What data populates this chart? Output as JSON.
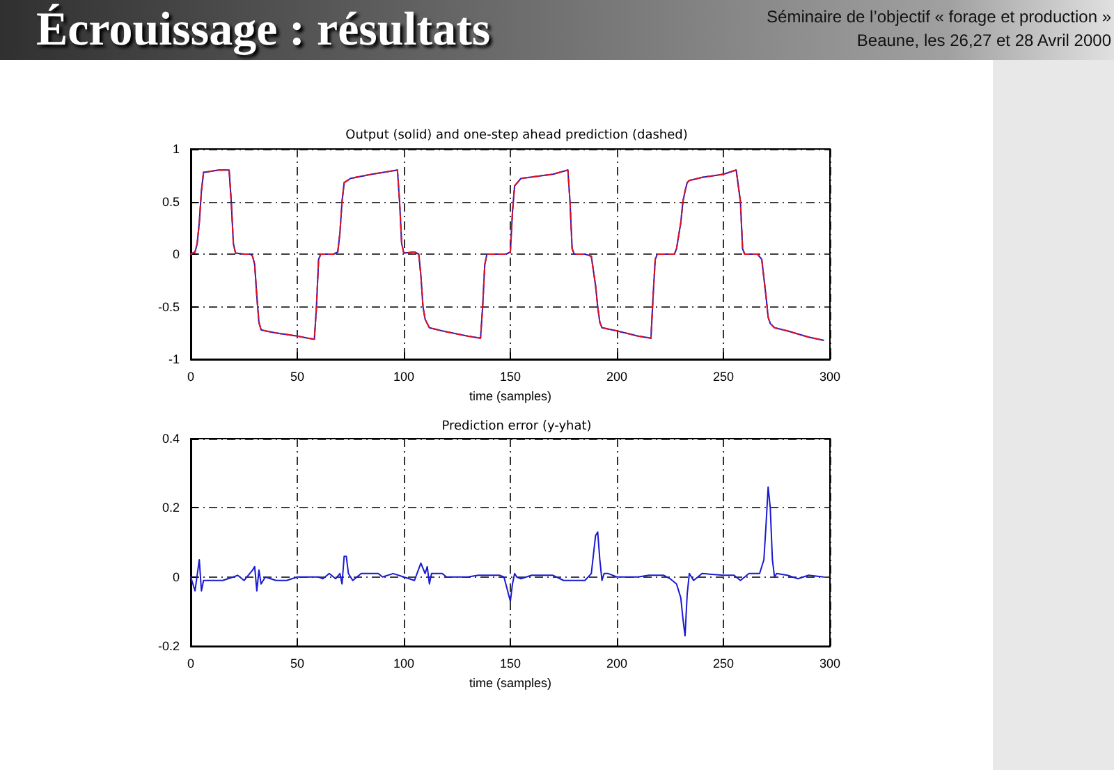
{
  "chart_data": [
    {
      "type": "line",
      "title": "Output (solid) and one-step ahead prediction (dashed)",
      "xlabel": "time (samples)",
      "annotations": [
        "Écrouissage : résultats",
        "Séminaire de l’objectif « forage et production »",
        "Beaune, les 26,27 et 28 Avril 2000"
      ],
      "x": [
        0,
        2,
        3,
        4,
        5,
        6,
        7,
        10,
        13,
        18,
        19,
        20,
        21,
        25,
        28,
        29,
        30,
        31,
        32,
        33,
        35,
        40,
        50,
        55,
        58,
        59,
        60,
        61,
        67,
        69,
        70,
        71,
        72,
        75,
        85,
        97,
        98,
        99,
        100,
        105,
        107,
        108,
        109,
        110,
        112,
        118,
        130,
        136,
        137,
        138,
        139,
        148,
        150,
        151,
        152,
        155,
        170,
        177,
        178,
        179,
        180,
        185,
        188,
        190,
        191,
        192,
        193,
        200,
        210,
        216,
        217,
        218,
        219,
        227,
        228,
        230,
        231,
        232,
        233,
        234,
        240,
        250,
        256,
        258,
        259,
        260,
        266,
        268,
        270,
        271,
        272,
        273,
        274,
        280,
        290,
        297
      ],
      "series": [
        {
          "color": "#1a1ad0",
          "line_style": "solid",
          "values": [
            0,
            0.02,
            0.1,
            0.3,
            0.6,
            0.78,
            0.78,
            0.79,
            0.8,
            0.8,
            0.5,
            0.1,
            0.01,
            0,
            0,
            -0.02,
            -0.1,
            -0.4,
            -0.65,
            -0.72,
            -0.73,
            -0.75,
            -0.78,
            -0.8,
            -0.81,
            -0.5,
            -0.05,
            0,
            0,
            0.02,
            0.2,
            0.5,
            0.68,
            0.72,
            0.76,
            0.8,
            0.5,
            0.1,
            0.01,
            0.02,
            0,
            -0.2,
            -0.5,
            -0.62,
            -0.7,
            -0.73,
            -0.78,
            -0.8,
            -0.5,
            -0.1,
            0,
            0,
            0.02,
            0.4,
            0.65,
            0.72,
            0.76,
            0.8,
            0.5,
            0.05,
            0,
            0,
            -0.02,
            -0.3,
            -0.5,
            -0.65,
            -0.7,
            -0.73,
            -0.78,
            -0.8,
            -0.4,
            -0.05,
            0,
            0,
            0.05,
            0.3,
            0.5,
            0.6,
            0.68,
            0.7,
            0.73,
            0.76,
            0.8,
            0.5,
            0.05,
            0,
            0,
            -0.05,
            -0.4,
            -0.6,
            -0.66,
            -0.68,
            -0.7,
            -0.73,
            -0.79,
            -0.82
          ]
        },
        {
          "color": "#e01020",
          "line_style": "dashed",
          "values": [
            0,
            0.02,
            0.1,
            0.3,
            0.6,
            0.78,
            0.78,
            0.79,
            0.8,
            0.8,
            0.5,
            0.1,
            0.01,
            0,
            0,
            -0.02,
            -0.1,
            -0.4,
            -0.65,
            -0.72,
            -0.73,
            -0.75,
            -0.78,
            -0.8,
            -0.81,
            -0.5,
            -0.05,
            0,
            0,
            0.02,
            0.2,
            0.5,
            0.68,
            0.72,
            0.76,
            0.8,
            0.5,
            0.1,
            0.01,
            0.02,
            0,
            -0.2,
            -0.5,
            -0.62,
            -0.7,
            -0.73,
            -0.78,
            -0.8,
            -0.5,
            -0.1,
            0,
            0,
            0.02,
            0.4,
            0.65,
            0.72,
            0.76,
            0.8,
            0.5,
            0.05,
            0,
            0,
            -0.02,
            -0.3,
            -0.5,
            -0.65,
            -0.7,
            -0.73,
            -0.78,
            -0.8,
            -0.4,
            -0.05,
            0,
            0,
            0.05,
            0.3,
            0.5,
            0.6,
            0.68,
            0.7,
            0.73,
            0.76,
            0.8,
            0.5,
            0.05,
            0,
            0,
            -0.05,
            -0.4,
            -0.6,
            -0.66,
            -0.68,
            -0.7,
            -0.73,
            -0.79,
            -0.82
          ]
        }
      ],
      "xlim": [
        0,
        300
      ],
      "xticks": [
        0,
        50,
        100,
        150,
        200,
        250,
        300
      ],
      "ylim": [
        -1,
        1
      ],
      "yticks": [
        -1,
        -0.5,
        0,
        0.5,
        1
      ],
      "grid": true,
      "marker": "none"
    },
    {
      "type": "line",
      "title": "Prediction error (y-yhat)",
      "xlabel": "time (samples)",
      "x": [
        0,
        2,
        4,
        5,
        6,
        8,
        15,
        20,
        22,
        25,
        29,
        30,
        31,
        32,
        33,
        35,
        40,
        45,
        50,
        60,
        62,
        65,
        68,
        70,
        71,
        72,
        73,
        74,
        76,
        80,
        88,
        90,
        95,
        100,
        105,
        108,
        110,
        111,
        112,
        113,
        118,
        120,
        130,
        135,
        145,
        147,
        150,
        151,
        152,
        153,
        155,
        160,
        165,
        170,
        175,
        185,
        188,
        190,
        191,
        192,
        193,
        194,
        196,
        200,
        210,
        215,
        222,
        225,
        228,
        230,
        231,
        232,
        233,
        234,
        236,
        240,
        250,
        255,
        258,
        262,
        267,
        269,
        270,
        271,
        272,
        273,
        274,
        275,
        280,
        285,
        290,
        297
      ],
      "series": [
        {
          "color": "#1a1ad0",
          "line_style": "solid",
          "values": [
            0,
            -0.04,
            0.05,
            -0.04,
            -0.01,
            -0.01,
            -0.01,
            0,
            0.005,
            -0.01,
            0.02,
            0.03,
            -0.04,
            0.02,
            -0.02,
            0,
            -0.01,
            -0.01,
            0,
            0,
            -0.005,
            0.01,
            -0.005,
            0.01,
            -0.02,
            0.06,
            0.06,
            0.01,
            -0.01,
            0.01,
            0.01,
            0,
            0.01,
            0,
            -0.01,
            0.04,
            0.01,
            0.03,
            -0.02,
            0.01,
            0.01,
            0,
            0,
            0.005,
            0.005,
            0,
            -0.07,
            -0.02,
            0.01,
            0,
            -0.005,
            0.005,
            0.005,
            0.005,
            -0.01,
            -0.01,
            0.01,
            0.12,
            0.13,
            0.05,
            -0.01,
            0.01,
            0.01,
            0,
            0,
            0.005,
            0.005,
            -0.005,
            -0.02,
            -0.06,
            -0.12,
            -0.17,
            -0.05,
            0.01,
            -0.01,
            0.01,
            0.005,
            0.005,
            -0.01,
            0.01,
            0.01,
            0.05,
            0.15,
            0.26,
            0.2,
            0.05,
            0,
            0.01,
            0.005,
            -0.005,
            0.005,
            0
          ]
        }
      ],
      "xlim": [
        0,
        300
      ],
      "xticks": [
        0,
        50,
        100,
        150,
        200,
        250,
        300
      ],
      "ylim": [
        -0.2,
        0.4
      ],
      "yticks": [
        -0.2,
        0,
        0.2,
        0.4
      ],
      "grid": true,
      "marker": "none"
    }
  ]
}
